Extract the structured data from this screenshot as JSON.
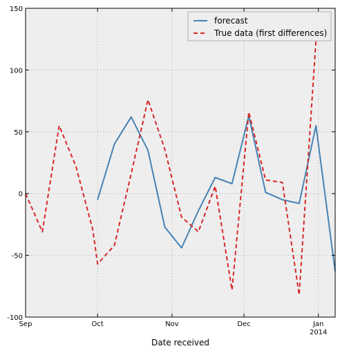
{
  "chart_data": {
    "type": "line",
    "title": "",
    "xlabel": "Date received",
    "ylabel": "",
    "xlim": [
      "2013-09-01",
      "2014-01-08"
    ],
    "ylim": [
      -100,
      150
    ],
    "yticks": [
      -100,
      -50,
      0,
      50,
      100,
      150
    ],
    "xticks": [
      {
        "date": "2013-09-01",
        "label": "Sep"
      },
      {
        "date": "2013-10-01",
        "label": "Oct"
      },
      {
        "date": "2013-11-01",
        "label": "Nov"
      },
      {
        "date": "2013-12-01",
        "label": "Dec"
      },
      {
        "date": "2014-01-01",
        "label": "Jan",
        "sublabel": "2014"
      }
    ],
    "grid": true,
    "legend": "top-right",
    "series": [
      {
        "name": "forecast",
        "color": "#4682b4",
        "style": "solid",
        "x": [
          "2013-10-01",
          "2013-10-08",
          "2013-10-15",
          "2013-10-22",
          "2013-10-29",
          "2013-11-05",
          "2013-11-12",
          "2013-11-19",
          "2013-11-26",
          "2013-12-03",
          "2013-12-10",
          "2013-12-17",
          "2013-12-24",
          "2013-12-31",
          "2014-01-08"
        ],
        "values": [
          -5,
          40,
          62,
          35,
          -27,
          -44,
          -14,
          13,
          8,
          63,
          1,
          -5,
          -8,
          55,
          -63
        ]
      },
      {
        "name": "True data (first differences)",
        "color": "#d62728",
        "style": "dashed",
        "x": [
          "2013-09-01",
          "2013-09-08",
          "2013-09-15",
          "2013-09-22",
          "2013-09-29",
          "2013-10-01",
          "2013-10-08",
          "2013-10-15",
          "2013-10-22",
          "2013-10-29",
          "2013-11-05",
          "2013-11-12",
          "2013-11-19",
          "2013-11-26",
          "2013-12-03",
          "2013-12-10",
          "2013-12-17",
          "2013-12-24",
          "2013-12-31"
        ],
        "values": [
          0,
          -31,
          55,
          22,
          -29,
          -57,
          -42,
          16,
          76,
          36,
          -19,
          -31,
          6,
          -78,
          66,
          11,
          9,
          -82,
          124
        ]
      }
    ]
  }
}
